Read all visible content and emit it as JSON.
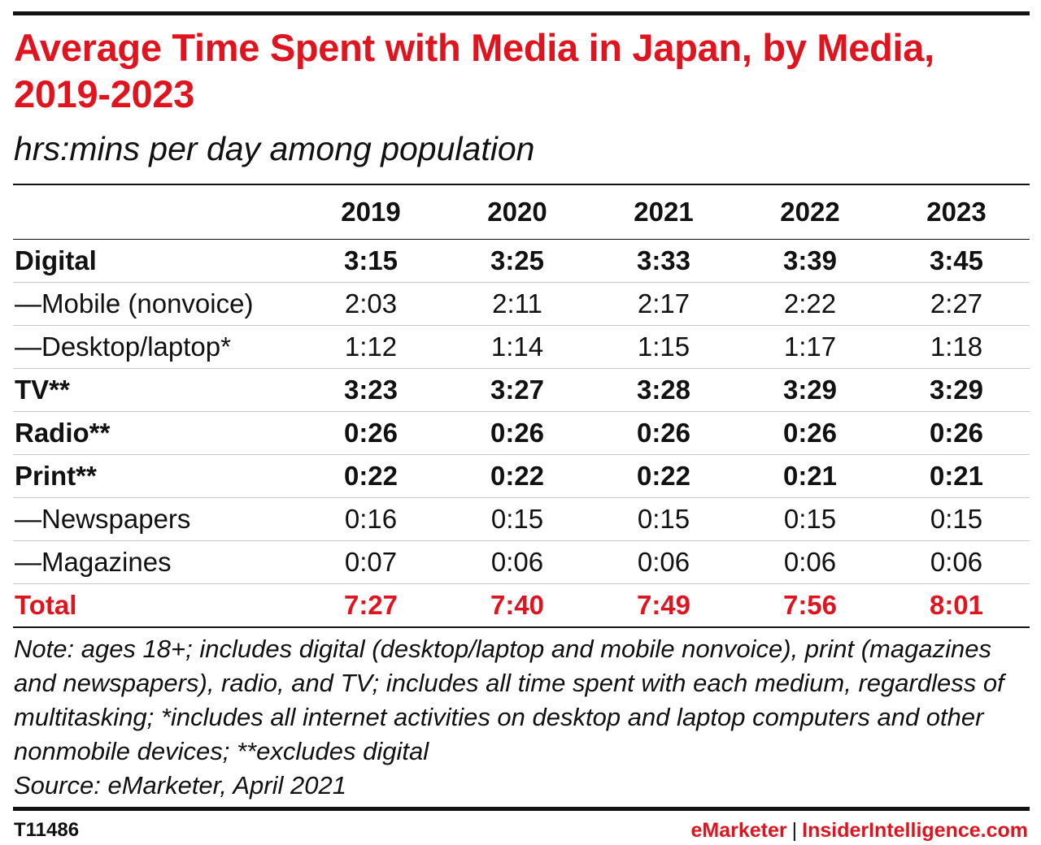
{
  "chart_data": {
    "type": "table",
    "title": "Average Time Spent with Media in Japan, by Media, 2019-2023",
    "subtitle": "hrs:mins per day among population",
    "columns": [
      "2019",
      "2020",
      "2021",
      "2022",
      "2023"
    ],
    "rows": [
      {
        "label": "Digital",
        "values": [
          "3:15",
          "3:25",
          "3:33",
          "3:39",
          "3:45"
        ]
      },
      {
        "label": "—Mobile (nonvoice)",
        "values": [
          "2:03",
          "2:11",
          "2:17",
          "2:22",
          "2:27"
        ]
      },
      {
        "label": "—Desktop/laptop*",
        "values": [
          "1:12",
          "1:14",
          "1:15",
          "1:17",
          "1:18"
        ]
      },
      {
        "label": "TV**",
        "values": [
          "3:23",
          "3:27",
          "3:28",
          "3:29",
          "3:29"
        ]
      },
      {
        "label": "Radio**",
        "values": [
          "0:26",
          "0:26",
          "0:26",
          "0:26",
          "0:26"
        ]
      },
      {
        "label": "Print**",
        "values": [
          "0:22",
          "0:22",
          "0:22",
          "0:21",
          "0:21"
        ]
      },
      {
        "label": "—Newspapers",
        "values": [
          "0:16",
          "0:15",
          "0:15",
          "0:15",
          "0:15"
        ]
      },
      {
        "label": "—Magazines",
        "values": [
          "0:07",
          "0:06",
          "0:06",
          "0:06",
          "0:06"
        ]
      },
      {
        "label": "Total",
        "values": [
          "7:27",
          "7:40",
          "7:49",
          "7:56",
          "8:01"
        ]
      }
    ],
    "bold_rows": [
      "Digital",
      "TV**",
      "Radio**",
      "Print**",
      "Total"
    ],
    "highlight_row": "Total",
    "colors": {
      "accent": "#e0141e",
      "text": "#111111",
      "rule": "#111111",
      "row_divider": "#c8c8c8"
    }
  },
  "note": "Note: ages 18+; includes digital (desktop/laptop and mobile nonvoice), print (magazines and newspapers), radio, and TV; includes all time spent with each medium, regardless of multitasking; *includes all internet activities on desktop and laptop computers and other nonmobile devices; **excludes digital",
  "source": "Source: eMarketer, April 2021",
  "footer": {
    "chart_id": "T11486",
    "brand_primary": "eMarketer",
    "separator": "|",
    "brand_secondary": "InsiderIntelligence.com"
  }
}
